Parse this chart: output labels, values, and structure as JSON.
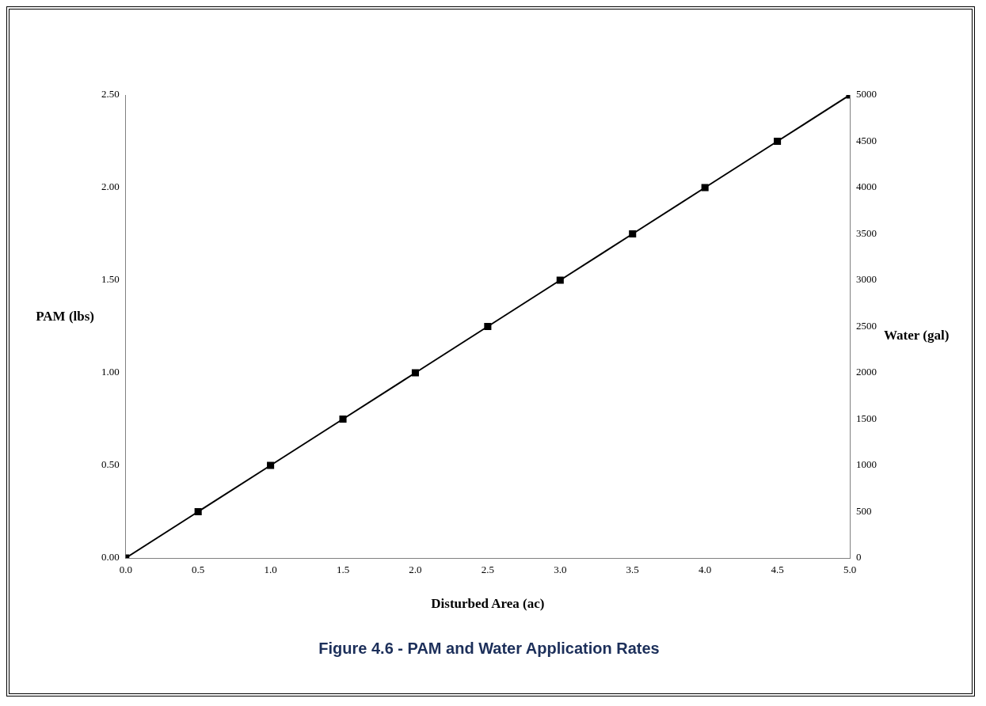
{
  "chart_data": {
    "type": "line",
    "title": "Figure 4.6 - PAM and Water Application Rates",
    "xlabel": "Disturbed Area (ac)",
    "ylabel": "PAM (lbs)",
    "y2label": "Water (gal)",
    "x": [
      0,
      0.5,
      1,
      1.5,
      2,
      2.5,
      3,
      3.5,
      4,
      4.5,
      5
    ],
    "series": [
      {
        "color": "#000000",
        "values": [
          0,
          0.25,
          0.5,
          0.75,
          1,
          1.25,
          1.5,
          1.75,
          2,
          2.25,
          2.5
        ]
      }
    ],
    "xlim": [
      0,
      5
    ],
    "xticks": [
      {
        "value": 0,
        "label": "0.0"
      },
      {
        "value": 0.5,
        "label": "0.5"
      },
      {
        "value": 1,
        "label": "1.0"
      },
      {
        "value": 1.5,
        "label": "1.5"
      },
      {
        "value": 2,
        "label": "2.0"
      },
      {
        "value": 2.5,
        "label": "2.5"
      },
      {
        "value": 3,
        "label": "3.0"
      },
      {
        "value": 3.5,
        "label": "3.5"
      },
      {
        "value": 4,
        "label": "4.0"
      },
      {
        "value": 4.5,
        "label": "4.5"
      },
      {
        "value": 5,
        "label": "5.0"
      }
    ],
    "ylim": [
      0,
      2.5
    ],
    "yticks": [
      {
        "value": 0,
        "label": "0.00"
      },
      {
        "value": 0.5,
        "label": "0.50"
      },
      {
        "value": 1,
        "label": "1.00"
      },
      {
        "value": 1.5,
        "label": "1.50"
      },
      {
        "value": 2,
        "label": "2.00"
      },
      {
        "value": 2.5,
        "label": "2.50"
      }
    ],
    "y2lim": [
      0,
      5000
    ],
    "y2ticks": [
      0,
      500,
      1000,
      1500,
      2000,
      2500,
      3000,
      3500,
      4000,
      4500,
      5000
    ],
    "marker": "square",
    "line_style": "solid",
    "legend": false
  }
}
